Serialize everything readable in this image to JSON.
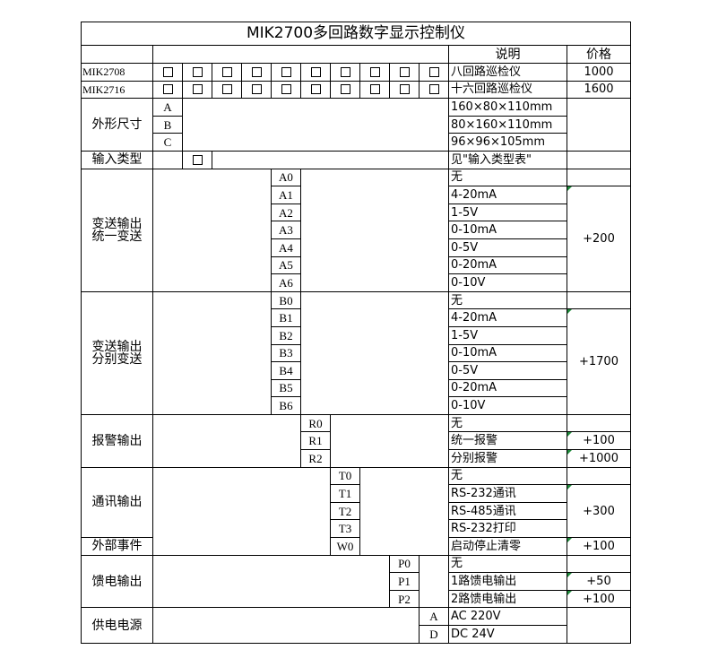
{
  "title": "MIK2700多回路数字显示控制仪",
  "header": {
    "desc": "说明",
    "price": "价格"
  },
  "models": [
    {
      "name": "MIK2708",
      "desc": "八回路巡检仪",
      "price": "1000"
    },
    {
      "name": "MIK2716",
      "desc": "十六回路巡检仪",
      "price": "1600"
    }
  ],
  "size": {
    "label": "外形尺寸",
    "codes": [
      "A",
      "B",
      "C"
    ],
    "descs": [
      "160×80×110mm",
      "80×160×110mm",
      "96×96×105mm"
    ]
  },
  "input": {
    "label": "输入类型",
    "desc": "见\"输入类型表\""
  },
  "unified": {
    "label": "变送输出\n统一变送",
    "codes": [
      "A0",
      "A1",
      "A2",
      "A3",
      "A4",
      "A5",
      "A6"
    ],
    "descs": [
      "无",
      "4-20mA",
      "1-5V",
      "0-10mA",
      "0-5V",
      "0-20mA",
      "0-10V"
    ],
    "price": "+200"
  },
  "separate": {
    "label": "变送输出\n分别变送",
    "codes": [
      "B0",
      "B1",
      "B2",
      "B3",
      "B4",
      "B5",
      "B6"
    ],
    "descs": [
      "无",
      "4-20mA",
      "1-5V",
      "0-10mA",
      "0-5V",
      "0-20mA",
      "0-10V"
    ],
    "price": "+1700"
  },
  "alarm": {
    "label": "报警输出",
    "codes": [
      "R0",
      "R1",
      "R2"
    ],
    "descs": [
      "无",
      "统一报警",
      "分别报警"
    ],
    "prices": [
      "",
      "+100",
      "+1000"
    ]
  },
  "comm": {
    "label": "通讯输出",
    "codes": [
      "T0",
      "T1",
      "T2",
      "T3"
    ],
    "descs": [
      "无",
      "RS-232通讯",
      "RS-485通讯",
      "RS-232打印"
    ],
    "price": "+300"
  },
  "event": {
    "label": "外部事件",
    "code": "W0",
    "desc": "启动停止清零",
    "price": "+100"
  },
  "feed": {
    "label": "馈电输出",
    "codes": [
      "P0",
      "P1",
      "P2"
    ],
    "descs": [
      "无",
      "1路馈电输出",
      "2路馈电输出"
    ],
    "prices": [
      "",
      "+50",
      "+100"
    ]
  },
  "power": {
    "label": "供电电源",
    "codes": [
      "A",
      "D"
    ],
    "descs": [
      "AC 220V",
      "DC 24V"
    ]
  },
  "colors": {
    "indicator": "#1f8a3b",
    "grid": "#000000"
  }
}
